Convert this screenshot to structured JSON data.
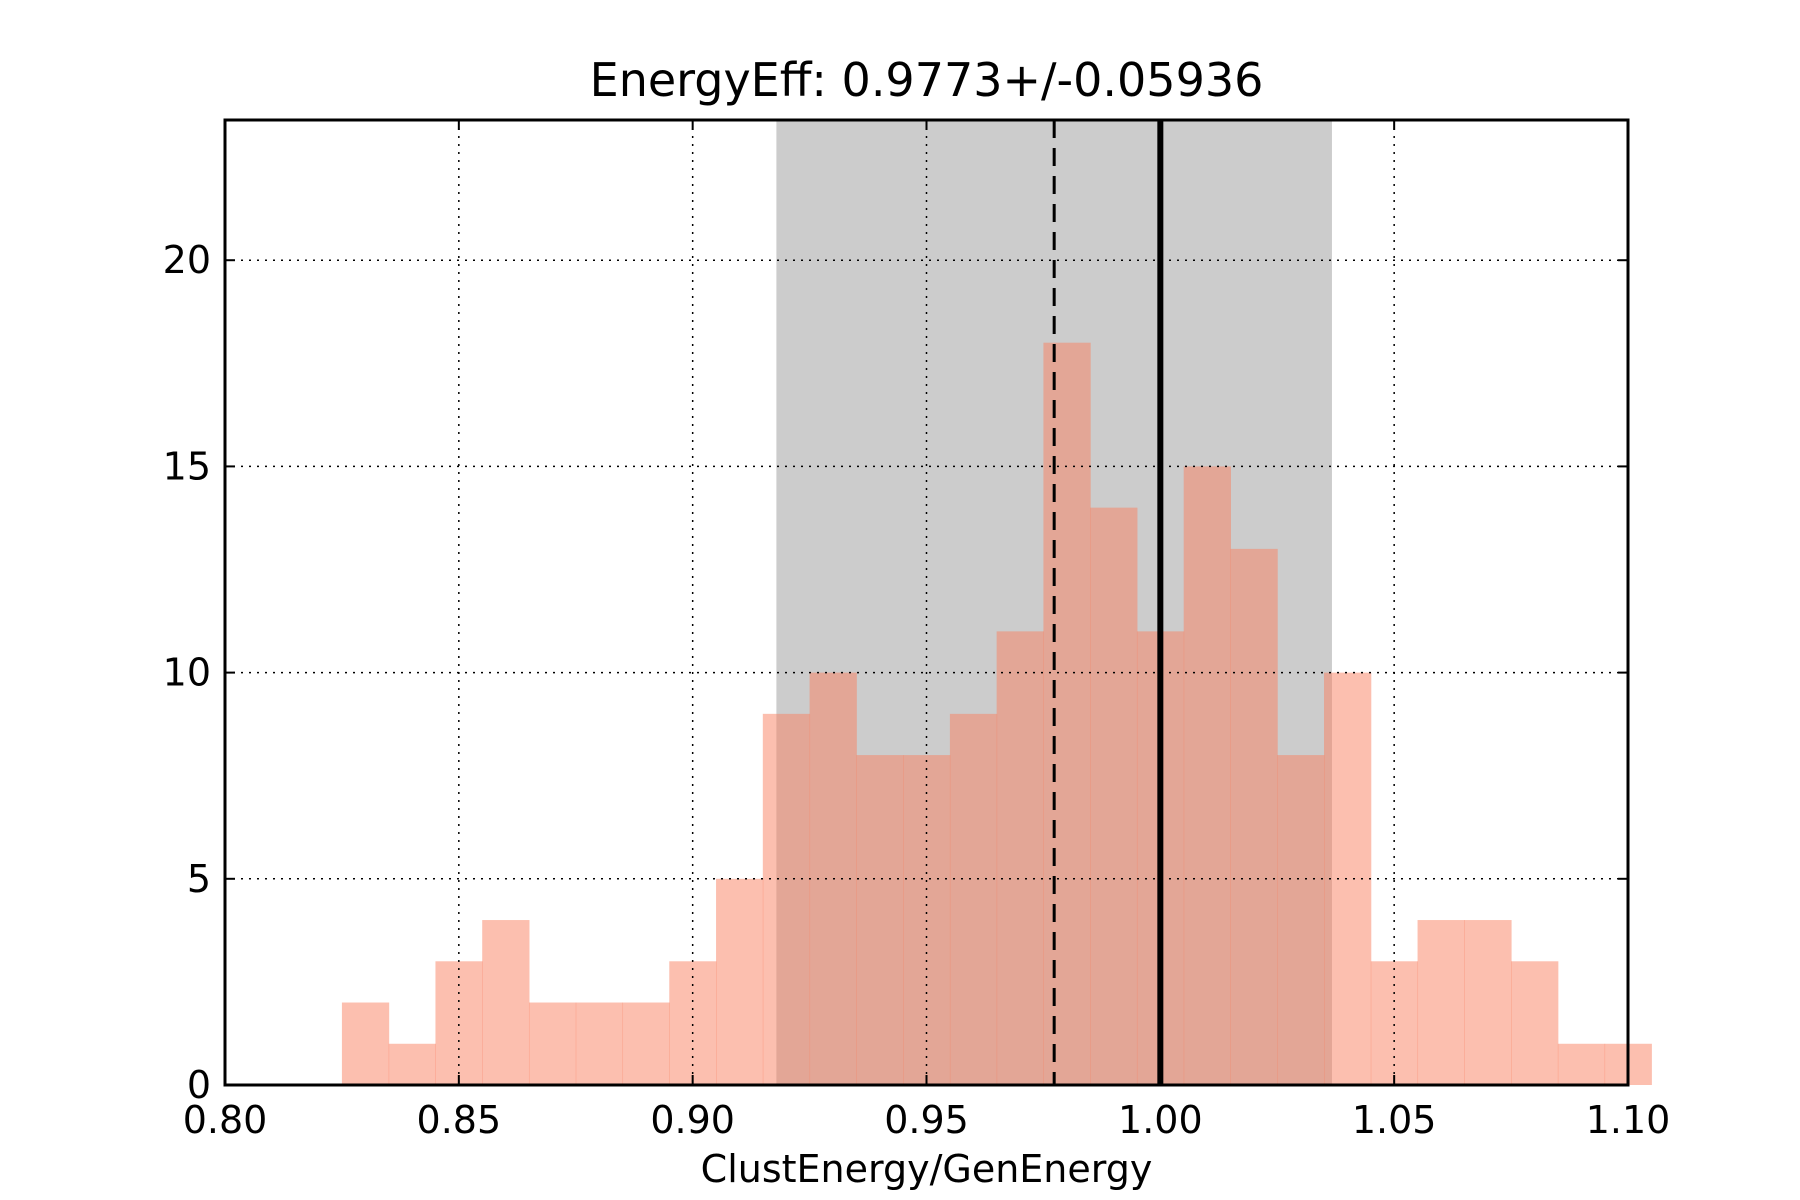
{
  "chart_data": {
    "type": "bar",
    "title": "EnergyEff: 0.9773+/-0.05936",
    "xlabel": "ClustEnergy/GenEnergy",
    "ylabel": "",
    "xlim": [
      0.8,
      1.1
    ],
    "ylim": [
      0,
      23.4
    ],
    "xticks": [
      "0.80",
      "0.85",
      "0.90",
      "0.95",
      "1.00",
      "1.05",
      "1.10"
    ],
    "yticks": [
      "0",
      "5",
      "10",
      "15",
      "20"
    ],
    "grid": true,
    "bin_edges": [
      0.825,
      0.835,
      0.845,
      0.855,
      0.865,
      0.875,
      0.885,
      0.895,
      0.905,
      0.915,
      0.925,
      0.935,
      0.945,
      0.955,
      0.965,
      0.975,
      0.985,
      0.995,
      1.005,
      1.015,
      1.025,
      1.035,
      1.045,
      1.055,
      1.065,
      1.075,
      1.085,
      1.095
    ],
    "values": [
      2,
      1,
      3,
      4,
      2,
      2,
      2,
      3,
      5,
      9,
      10,
      8,
      8,
      9,
      11,
      18,
      14,
      11,
      15,
      13,
      8,
      10,
      3,
      4,
      4,
      3,
      1,
      1
    ],
    "band": [
      0.9179,
      1.0367
    ],
    "mean_line": 0.9773,
    "reference_line": 1.0,
    "colors": {
      "bars": "#fa8060",
      "bars_opacity": 0.5,
      "band": "#cccccc",
      "lines": "#000000"
    }
  }
}
